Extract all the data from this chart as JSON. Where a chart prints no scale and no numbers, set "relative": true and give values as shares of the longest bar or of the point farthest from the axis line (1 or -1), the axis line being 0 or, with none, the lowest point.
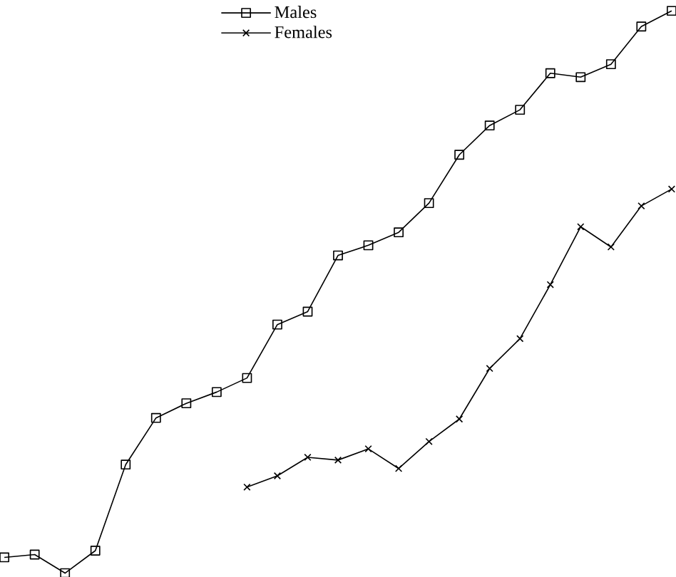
{
  "chart_data": {
    "type": "line",
    "relative": true,
    "legend": "top",
    "categories": [
      null,
      null,
      null,
      null,
      null,
      null,
      null,
      null,
      null,
      null,
      null,
      null,
      null,
      null,
      null,
      null,
      null,
      null,
      null,
      null,
      null,
      null,
      null
    ],
    "series": [
      {
        "name": "Males",
        "color": "#000000",
        "marker": "square",
        "values": [
          0.028,
          0.033,
          0,
          0.04,
          0.193,
          0.276,
          0.302,
          0.322,
          0.347,
          0.442,
          0.465,
          0.565,
          0.583,
          0.606,
          0.658,
          0.744,
          0.796,
          0.824,
          0.889,
          0.882,
          0.905,
          0.972,
          1.0
        ]
      },
      {
        "name": "Females",
        "color": "#000000",
        "marker": "cross",
        "values": [
          null,
          null,
          null,
          null,
          null,
          null,
          null,
          null,
          0.153,
          0.173,
          0.206,
          0.201,
          0.221,
          0.186,
          0.234,
          0.274,
          0.364,
          0.417,
          0.513,
          0.616,
          0.58,
          0.653,
          0.683
        ]
      }
    ]
  }
}
